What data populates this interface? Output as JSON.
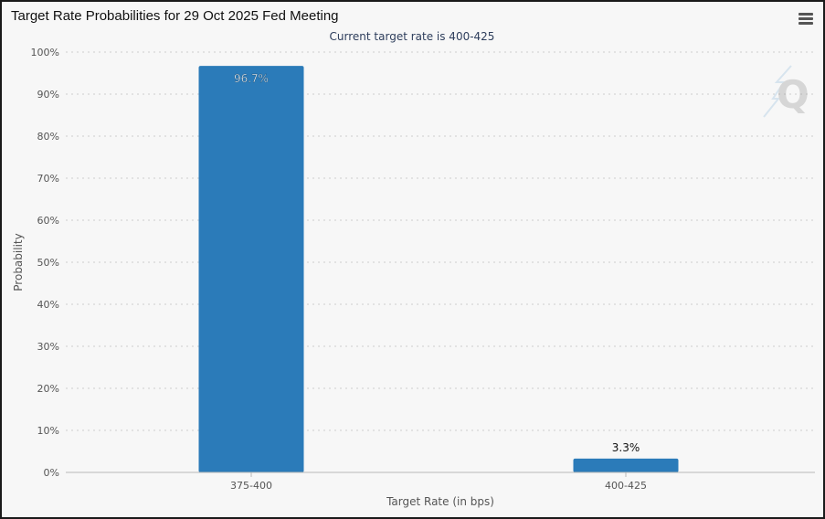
{
  "window": {
    "title": "Target Rate Probabilities for 29 Oct 2025 Fed Meeting",
    "menu_icon": "hamburger-menu-icon",
    "watermark_icon": "q-logo-icon"
  },
  "chart_data": {
    "type": "bar",
    "title": "Target Rate Probabilities for 29 Oct 2025 Fed Meeting",
    "subtitle": "Current target rate is 400-425",
    "xlabel": "Target Rate (in bps)",
    "ylabel": "Probability",
    "categories": [
      "375-400",
      "400-425"
    ],
    "values": [
      96.7,
      3.3
    ],
    "data_labels": [
      "96.7%",
      "3.3%"
    ],
    "ylim": [
      0,
      100
    ],
    "yticks": [
      0,
      10,
      20,
      30,
      40,
      50,
      60,
      70,
      80,
      90,
      100
    ],
    "ytick_labels": [
      "0%",
      "10%",
      "20%",
      "30%",
      "40%",
      "50%",
      "60%",
      "70%",
      "80%",
      "90%",
      "100%"
    ],
    "grid": true,
    "legend": "none",
    "colors": {
      "bar": "#2b7bb9",
      "grid": "#cccccc",
      "axis_text": "#555555",
      "subtitle": "#2e3e5c"
    }
  }
}
